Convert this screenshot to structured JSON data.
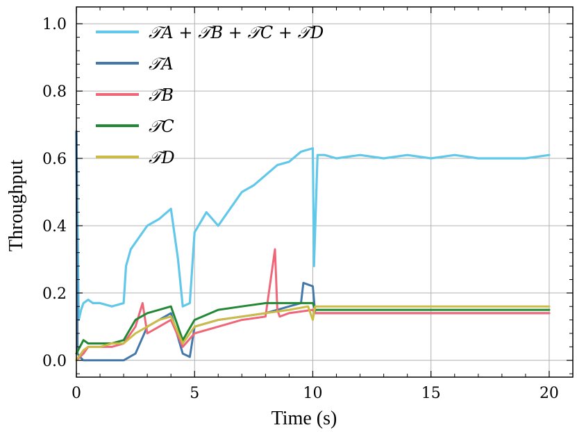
{
  "chart_data": {
    "type": "line",
    "title": "",
    "xlabel": "Time (s)",
    "ylabel": "Throughput",
    "xlim": [
      0,
      21
    ],
    "ylim": [
      -0.05,
      1.05
    ],
    "xticks": [
      0,
      5,
      10,
      15,
      20
    ],
    "yticks": [
      0.0,
      0.2,
      0.4,
      0.6,
      0.8,
      1.0
    ],
    "xtick_labels": [
      "0",
      "5",
      "10",
      "15",
      "20"
    ],
    "ytick_labels": [
      "0.0",
      "0.2",
      "0.4",
      "0.6",
      "0.8",
      "1.0"
    ],
    "grid": true,
    "legend_position": "top-left",
    "series": [
      {
        "name": "T_A + T_B + T_C + T_D",
        "legend_label": "𝒯A + 𝒯B + 𝒯C + 𝒯D",
        "color": "#61c8ea",
        "x": [
          0,
          0.1,
          0.2,
          0.3,
          0.5,
          0.7,
          1.0,
          1.5,
          2.0,
          2.1,
          2.3,
          2.5,
          3.0,
          3.5,
          4.0,
          4.3,
          4.5,
          4.8,
          5.0,
          5.5,
          6.0,
          6.5,
          7.0,
          7.5,
          8.0,
          8.5,
          9.0,
          9.5,
          10.0,
          10.05,
          10.2,
          10.5,
          11,
          12,
          13,
          14,
          15,
          16,
          17,
          18,
          19,
          20
        ],
        "y": [
          0.68,
          0.12,
          0.15,
          0.17,
          0.18,
          0.17,
          0.17,
          0.16,
          0.17,
          0.28,
          0.33,
          0.35,
          0.4,
          0.42,
          0.45,
          0.3,
          0.16,
          0.17,
          0.38,
          0.44,
          0.4,
          0.45,
          0.5,
          0.52,
          0.55,
          0.58,
          0.59,
          0.62,
          0.63,
          0.28,
          0.61,
          0.61,
          0.6,
          0.61,
          0.6,
          0.61,
          0.6,
          0.61,
          0.6,
          0.6,
          0.6,
          0.61
        ]
      },
      {
        "name": "T_A",
        "legend_label": "𝒯A",
        "color": "#4477aa",
        "x": [
          0,
          0.05,
          0.15,
          0.3,
          0.5,
          1.0,
          1.5,
          2.0,
          2.5,
          3.0,
          3.5,
          4.0,
          4.5,
          4.8,
          5.0,
          6.0,
          7.0,
          8.0,
          9.0,
          9.5,
          9.6,
          10.0,
          10.1,
          11,
          12,
          13,
          14,
          15,
          16,
          17,
          18,
          19,
          20
        ],
        "y": [
          0.68,
          0.02,
          0.01,
          0.0,
          0.0,
          0.0,
          0.0,
          0.0,
          0.02,
          0.1,
          0.12,
          0.14,
          0.02,
          0.01,
          0.1,
          0.12,
          0.13,
          0.14,
          0.16,
          0.17,
          0.23,
          0.22,
          0.14,
          0.14,
          0.14,
          0.14,
          0.14,
          0.14,
          0.14,
          0.14,
          0.14,
          0.14,
          0.14
        ]
      },
      {
        "name": "T_B",
        "legend_label": "𝒯B",
        "color": "#ee6677",
        "x": [
          0,
          0.3,
          0.5,
          1.0,
          1.5,
          2.0,
          2.5,
          2.8,
          3.0,
          3.5,
          4.0,
          4.5,
          5.0,
          6.0,
          7.0,
          8.0,
          8.4,
          8.5,
          8.6,
          9.0,
          10.0,
          10.1,
          11,
          12,
          13,
          14,
          15,
          16,
          17,
          18,
          19,
          20
        ],
        "y": [
          0.0,
          0.02,
          0.04,
          0.04,
          0.04,
          0.05,
          0.1,
          0.17,
          0.08,
          0.1,
          0.12,
          0.04,
          0.08,
          0.1,
          0.12,
          0.13,
          0.33,
          0.15,
          0.13,
          0.14,
          0.15,
          0.14,
          0.14,
          0.14,
          0.14,
          0.14,
          0.14,
          0.14,
          0.14,
          0.14,
          0.14,
          0.14
        ]
      },
      {
        "name": "T_C",
        "legend_label": "𝒯C",
        "color": "#228833",
        "x": [
          0,
          0.3,
          0.5,
          1.0,
          1.5,
          2.0,
          2.5,
          3.0,
          3.5,
          4.0,
          4.5,
          5.0,
          6.0,
          7.0,
          8.0,
          9.0,
          10.0,
          10.1,
          11,
          12,
          13,
          14,
          15,
          16,
          17,
          18,
          19,
          20
        ],
        "y": [
          0.02,
          0.06,
          0.05,
          0.05,
          0.05,
          0.06,
          0.12,
          0.14,
          0.15,
          0.16,
          0.06,
          0.12,
          0.15,
          0.16,
          0.17,
          0.17,
          0.17,
          0.15,
          0.15,
          0.15,
          0.15,
          0.15,
          0.15,
          0.15,
          0.15,
          0.15,
          0.15,
          0.15
        ]
      },
      {
        "name": "T_D",
        "legend_label": "𝒯D",
        "color": "#ccbb44",
        "x": [
          0,
          0.3,
          0.5,
          1.0,
          1.5,
          2.0,
          2.5,
          3.0,
          3.5,
          4.0,
          4.5,
          5.0,
          6.0,
          7.0,
          8.0,
          9.0,
          9.8,
          10.0,
          10.1,
          11,
          12,
          13,
          14,
          15,
          16,
          17,
          18,
          19,
          20
        ],
        "y": [
          0.0,
          0.03,
          0.04,
          0.04,
          0.05,
          0.05,
          0.08,
          0.1,
          0.12,
          0.13,
          0.05,
          0.1,
          0.12,
          0.13,
          0.14,
          0.15,
          0.16,
          0.12,
          0.16,
          0.16,
          0.16,
          0.16,
          0.16,
          0.16,
          0.16,
          0.16,
          0.16,
          0.16,
          0.16
        ]
      }
    ]
  }
}
